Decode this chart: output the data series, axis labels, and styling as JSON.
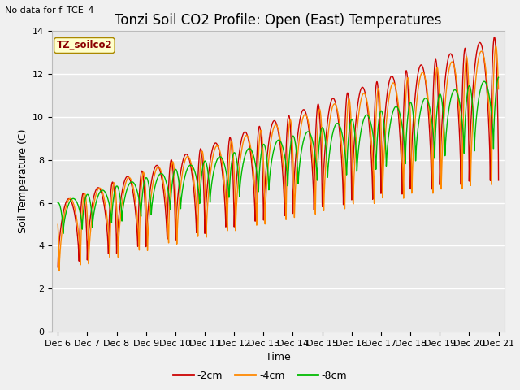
{
  "title": "Tonzi Soil CO2 Profile: Open (East) Temperatures",
  "subtitle": "No data for f_TCE_4",
  "legend_label": "TZ_soilco2",
  "ylabel": "Soil Temperature (C)",
  "xlabel": "Time",
  "ylim": [
    0,
    14
  ],
  "colors": {
    "-2cm": "#cc0000",
    "-4cm": "#ff8800",
    "-8cm": "#00bb00"
  },
  "legend_entries": [
    "-2cm",
    "-4cm",
    "-8cm"
  ],
  "xtick_labels": [
    "Dec 6",
    "Dec 7",
    "Dec 8",
    "Dec 9",
    "Dec 10",
    "Dec 11",
    "Dec 12",
    "Dec 13",
    "Dec 14",
    "Dec 15",
    "Dec 16",
    "Dec 17",
    "Dec 18",
    "Dec 19",
    "Dec 20",
    "Dec 21"
  ],
  "fig_facecolor": "#f0f0f0",
  "ax_facecolor": "#e8e8e8",
  "grid_color": "#ffffff",
  "title_fontsize": 12,
  "axis_fontsize": 9,
  "tick_fontsize": 8
}
